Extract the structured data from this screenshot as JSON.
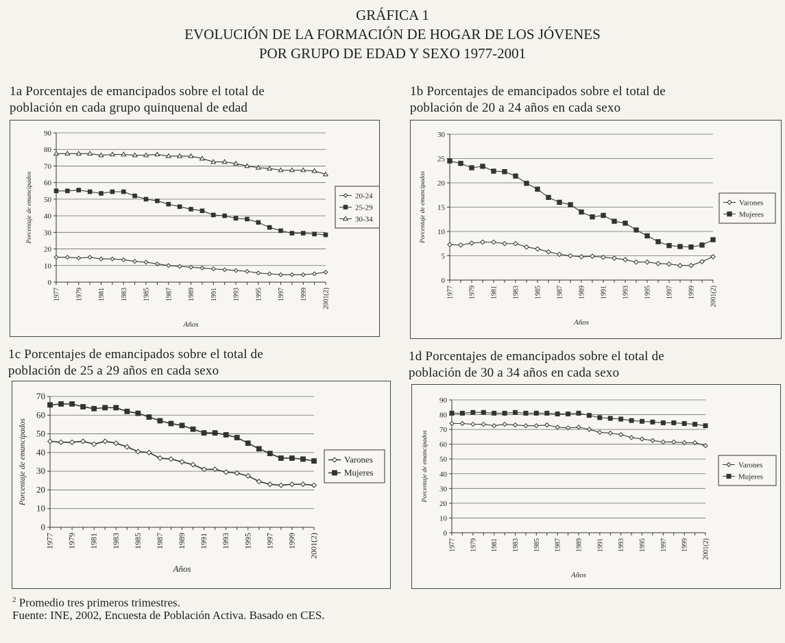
{
  "page": {
    "title_lines": [
      "GRÁFICA 1",
      "EVOLUCIÓN DE LA FORMACIÓN DE HOGAR DE LOS JÓVENES",
      "POR GRUPO DE EDAD Y SEXO 1977-2001"
    ],
    "footnote_mark": "2",
    "footnote_text": "Promedio tres primeros trimestres.",
    "source": "Fuente: INE, 2002, Encuesta de Población Activa. Basado en CES."
  },
  "chart_data": [
    {
      "id": "1a",
      "type": "line",
      "caption_lines": [
        "1a Porcentajes de emancipados sobre el total de",
        "población en cada grupo quinquenal de edad"
      ],
      "xlabel": "Años",
      "ylabel": "Porcentaje de emancipados",
      "ylim": [
        0,
        90
      ],
      "yticks": [
        0,
        10,
        20,
        30,
        40,
        50,
        60,
        70,
        80,
        90
      ],
      "x": [
        1977,
        1978,
        1979,
        1980,
        1981,
        1982,
        1983,
        1984,
        1985,
        1986,
        1987,
        1988,
        1989,
        1990,
        1991,
        1992,
        1993,
        1994,
        1995,
        1996,
        1997,
        1998,
        1999,
        2000,
        2001
      ],
      "x_tick_labels": [
        "1977",
        "1979",
        "1981",
        "1983",
        "1985",
        "1987",
        "1989",
        "1991",
        "1993",
        "1995",
        "1997",
        "1999",
        "2001(2)"
      ],
      "grid": true,
      "legend_position": "right",
      "series": [
        {
          "name": "20-24",
          "marker": "diamond",
          "values": [
            15,
            15,
            14.5,
            15,
            14,
            14,
            13.5,
            12.5,
            12,
            11,
            10,
            9.5,
            9,
            8.5,
            8,
            7.5,
            7,
            6.5,
            5.5,
            5,
            4.5,
            4.5,
            4.5,
            5,
            6
          ]
        },
        {
          "name": "25-29",
          "marker": "square",
          "values": [
            55,
            55,
            55.5,
            54.5,
            53.5,
            54.5,
            54.5,
            52,
            50,
            49,
            47,
            45.5,
            44,
            43,
            40.5,
            40,
            38.5,
            38,
            36,
            33,
            31,
            29.5,
            29.5,
            29,
            28.5
          ]
        },
        {
          "name": "30-34",
          "marker": "triangle",
          "values": [
            77.5,
            77.5,
            77.5,
            77.5,
            76.5,
            77,
            77,
            76.5,
            76.5,
            77,
            76,
            76,
            76,
            74.5,
            72.5,
            72.5,
            71.5,
            70,
            69,
            68.5,
            67.5,
            67.5,
            67.5,
            67,
            65
          ]
        }
      ]
    },
    {
      "id": "1b",
      "type": "line",
      "caption_lines": [
        "1b  Porcentajes de emancipados sobre el total de",
        "población de 20 a 24 años en cada sexo"
      ],
      "xlabel": "Años",
      "ylabel": "Porcentaje de emancipados",
      "ylim": [
        0,
        30
      ],
      "yticks": [
        0,
        5,
        10,
        15,
        20,
        25,
        30
      ],
      "x": [
        1977,
        1978,
        1979,
        1980,
        1981,
        1982,
        1983,
        1984,
        1985,
        1986,
        1987,
        1988,
        1989,
        1990,
        1991,
        1992,
        1993,
        1994,
        1995,
        1996,
        1997,
        1998,
        1999,
        2000,
        2001
      ],
      "x_tick_labels": [
        "1977",
        "1979",
        "1981",
        "1983",
        "1985",
        "1987",
        "1989",
        "1991",
        "1993",
        "1995",
        "1997",
        "1999",
        "2001(2)"
      ],
      "grid": true,
      "legend_position": "right",
      "series": [
        {
          "name": "Varones",
          "marker": "diamond",
          "values": [
            7.3,
            7.2,
            7.6,
            7.8,
            7.8,
            7.5,
            7.5,
            6.8,
            6.4,
            5.8,
            5.3,
            5,
            4.8,
            4.9,
            4.7,
            4.5,
            4.2,
            3.7,
            3.7,
            3.4,
            3.3,
            3,
            3,
            3.8,
            4.8
          ]
        },
        {
          "name": "Mujeres",
          "marker": "square",
          "values": [
            24.5,
            24,
            23.1,
            23.4,
            22.4,
            22.3,
            21.4,
            19.9,
            18.7,
            17,
            16,
            15.5,
            14,
            13,
            13.3,
            12.1,
            11.7,
            10.3,
            9.1,
            7.9,
            7.1,
            6.9,
            6.8,
            7.2,
            8.3
          ]
        }
      ]
    },
    {
      "id": "1c",
      "type": "line",
      "caption_lines": [
        "1c  Porcentajes de emancipados sobre el total de",
        "población de 25 a 29 años en cada sexo"
      ],
      "xlabel": "Años",
      "ylabel": "Porcentaje de emancipados",
      "ylim": [
        0,
        70
      ],
      "yticks": [
        0,
        10,
        20,
        30,
        40,
        50,
        60,
        70
      ],
      "x": [
        1977,
        1978,
        1979,
        1980,
        1981,
        1982,
        1983,
        1984,
        1985,
        1986,
        1987,
        1988,
        1989,
        1990,
        1991,
        1992,
        1993,
        1994,
        1995,
        1996,
        1997,
        1998,
        1999,
        2000,
        2001
      ],
      "x_tick_labels": [
        "1977",
        "1979",
        "1981",
        "1983",
        "1985",
        "1987",
        "1989",
        "1991",
        "1993",
        "1995",
        "1997",
        "1999",
        "2001(2)"
      ],
      "grid": true,
      "legend_position": "right",
      "series": [
        {
          "name": "Varones",
          "marker": "diamond",
          "values": [
            46,
            45.5,
            45.5,
            46,
            44.5,
            46,
            45,
            43,
            40.5,
            40,
            37,
            36.5,
            35,
            33.5,
            31,
            31,
            29.5,
            29,
            27.5,
            24.5,
            23,
            22.5,
            23,
            23,
            22.5
          ]
        },
        {
          "name": "Mujeres",
          "marker": "square",
          "values": [
            65.5,
            66,
            66,
            64.5,
            63.5,
            64,
            64,
            62,
            61,
            59,
            57,
            55.5,
            54.5,
            52.5,
            50.5,
            50.5,
            49.5,
            48,
            45,
            42,
            39.5,
            37,
            37,
            36.5,
            35.5
          ]
        }
      ]
    },
    {
      "id": "1d",
      "type": "line",
      "caption_lines": [
        "1d  Porcentajes de emancipados sobre el total de",
        "población de 30 a 34 años en cada sexo"
      ],
      "xlabel": "Años",
      "ylabel": "Porcentaje de emancipados",
      "ylim": [
        0,
        90
      ],
      "yticks": [
        0,
        10,
        20,
        30,
        40,
        50,
        60,
        70,
        80,
        90
      ],
      "x": [
        1977,
        1978,
        1979,
        1980,
        1981,
        1982,
        1983,
        1984,
        1985,
        1986,
        1987,
        1988,
        1989,
        1990,
        1991,
        1992,
        1993,
        1994,
        1995,
        1996,
        1997,
        1998,
        1999,
        2000,
        2001
      ],
      "x_tick_labels": [
        "1977",
        "1979",
        "1981",
        "1983",
        "1985",
        "1987",
        "1989",
        "1991",
        "1993",
        "1995",
        "1997",
        "1999",
        "2001(2)"
      ],
      "grid": true,
      "legend_position": "right",
      "series": [
        {
          "name": "Varones",
          "marker": "diamond",
          "values": [
            74,
            74,
            73.5,
            73.5,
            72.5,
            73.5,
            73,
            72.5,
            72.5,
            73,
            71.5,
            71,
            71.5,
            70,
            68,
            67.5,
            66.5,
            64.5,
            63.5,
            62.5,
            61.5,
            61.5,
            61,
            61,
            59
          ]
        },
        {
          "name": "Mujeres",
          "marker": "square",
          "values": [
            81,
            81,
            81.5,
            81.5,
            81,
            81,
            81.5,
            81,
            81,
            81,
            80.5,
            80.5,
            81,
            79.5,
            78,
            77.5,
            77,
            76,
            75.5,
            75,
            74.5,
            74.5,
            74,
            73.5,
            72.5
          ]
        }
      ]
    }
  ]
}
